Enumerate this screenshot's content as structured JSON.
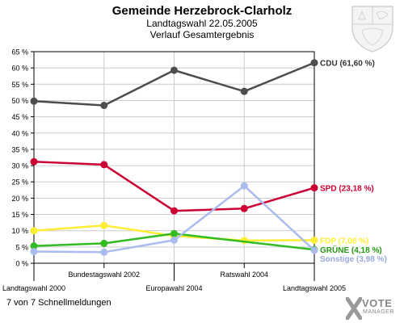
{
  "header": {
    "title": "Gemeinde Herzebrock-Clarholz",
    "subtitle1": "Landtagswahl 22.05.2005",
    "subtitle2": "Verlauf Gesamtergebnis"
  },
  "footer": {
    "note": "7 von 7 Schnellmeldungen"
  },
  "logo": {
    "word1": "VOTE",
    "word2": "MANAGER"
  },
  "chart_data": {
    "type": "line",
    "ylim": [
      0,
      65
    ],
    "ytick_step": 5,
    "ytick_suffix": " %",
    "grid": true,
    "categories": [
      "Landtagswahl 2000",
      "Bundestagswahl 2002",
      "Europawahl 2004",
      "Ratswahl 2004",
      "Landtagswahl 2005"
    ],
    "series": [
      {
        "name": "CDU",
        "end_label": "CDU (61,60 %)",
        "color": "#4d4d4d",
        "label_color": "#333333",
        "values": [
          49.8,
          48.5,
          59.3,
          52.8,
          61.6
        ]
      },
      {
        "name": "SPD",
        "end_label": "SPD (23,18 %)",
        "color": "#cc0033",
        "label_color": "#cc0033",
        "values": [
          31.2,
          30.3,
          16.1,
          16.8,
          23.18
        ]
      },
      {
        "name": "FDP",
        "end_label": "FDP (7,08 %)",
        "color": "#ffee33",
        "label_color": "#ffee33",
        "values": [
          10.0,
          11.6,
          8.4,
          7.0,
          7.08
        ]
      },
      {
        "name": "GRÜNE",
        "end_label": "GRÜNE (4,18 %)",
        "color": "#33bb22",
        "label_color": "#229911",
        "values": [
          5.3,
          6.1,
          9.1,
          null,
          4.18
        ]
      },
      {
        "name": "Sonstige",
        "end_label": "Sonstige (3,98 %)",
        "color": "#aabbee",
        "label_color": "#99aadd",
        "values": [
          3.6,
          3.4,
          7.1,
          23.8,
          3.98
        ]
      }
    ]
  }
}
